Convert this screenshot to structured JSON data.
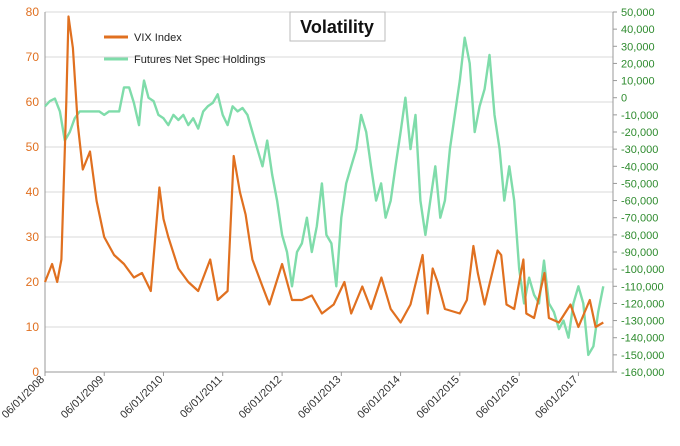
{
  "chart_data": {
    "type": "line",
    "title": "Volatility",
    "x_tick_labels": [
      "06/01/2008",
      "06/01/2009",
      "06/01/2010",
      "06/01/2011",
      "06/01/2012",
      "06/01/2013",
      "06/01/2014",
      "06/01/2015",
      "06/01/2016",
      "06/01/2017"
    ],
    "x_range": [
      "2008-06-01",
      "2017-12-31"
    ],
    "y_left": {
      "ticks": [
        0,
        10,
        20,
        30,
        40,
        50,
        60,
        70,
        80
      ],
      "range": [
        0,
        80
      ]
    },
    "y_right": {
      "ticks": [
        50000,
        40000,
        30000,
        20000,
        10000,
        0,
        -10000,
        -20000,
        -30000,
        -40000,
        -50000,
        -60000,
        -70000,
        -80000,
        -90000,
        -100000,
        -110000,
        -120000,
        -130000,
        -140000,
        -150000,
        -160000
      ],
      "tick_labels": [
        "50,000",
        "40,000",
        "30,000",
        "20,000",
        "10,000",
        "0",
        "-10,000",
        "-20,000",
        "-30,000",
        "-40,000",
        "-50,000",
        "-60,000",
        "-70,000",
        "-80,000",
        "-90,000",
        "-100,000",
        "-110,000",
        "-120,000",
        "-130,000",
        "-140,000",
        "-150,000",
        "-160,000"
      ],
      "range": [
        -160000,
        50000
      ]
    },
    "grid": true,
    "legend_position": "top-left",
    "series": [
      {
        "name": "VIX Index",
        "axis": "left",
        "color": "#e07020",
        "points": [
          [
            "2008-06-01",
            20
          ],
          [
            "2008-07-15",
            24
          ],
          [
            "2008-08-15",
            20
          ],
          [
            "2008-09-10",
            25
          ],
          [
            "2008-10-10",
            60
          ],
          [
            "2008-10-24",
            79
          ],
          [
            "2008-11-20",
            72
          ],
          [
            "2008-12-20",
            55
          ],
          [
            "2009-01-20",
            45
          ],
          [
            "2009-03-05",
            49
          ],
          [
            "2009-04-15",
            38
          ],
          [
            "2009-06-01",
            30
          ],
          [
            "2009-08-01",
            26
          ],
          [
            "2009-10-01",
            24
          ],
          [
            "2009-12-01",
            21
          ],
          [
            "2010-01-20",
            22
          ],
          [
            "2010-03-15",
            18
          ],
          [
            "2010-05-07",
            41
          ],
          [
            "2010-06-01",
            34
          ],
          [
            "2010-07-01",
            30
          ],
          [
            "2010-09-01",
            23
          ],
          [
            "2010-11-01",
            20
          ],
          [
            "2011-01-01",
            18
          ],
          [
            "2011-03-16",
            25
          ],
          [
            "2011-05-01",
            16
          ],
          [
            "2011-07-01",
            18
          ],
          [
            "2011-08-08",
            48
          ],
          [
            "2011-09-15",
            40
          ],
          [
            "2011-10-20",
            35
          ],
          [
            "2011-12-01",
            25
          ],
          [
            "2012-02-01",
            19
          ],
          [
            "2012-03-15",
            15
          ],
          [
            "2012-06-01",
            24
          ],
          [
            "2012-08-01",
            16
          ],
          [
            "2012-10-01",
            16
          ],
          [
            "2012-12-01",
            17
          ],
          [
            "2013-02-01",
            13
          ],
          [
            "2013-04-15",
            15
          ],
          [
            "2013-06-20",
            20
          ],
          [
            "2013-08-01",
            13
          ],
          [
            "2013-10-08",
            19
          ],
          [
            "2013-12-01",
            14
          ],
          [
            "2014-02-03",
            21
          ],
          [
            "2014-04-01",
            14
          ],
          [
            "2014-06-01",
            11
          ],
          [
            "2014-08-01",
            15
          ],
          [
            "2014-10-15",
            26
          ],
          [
            "2014-11-15",
            13
          ],
          [
            "2014-12-16",
            23
          ],
          [
            "2015-01-15",
            20
          ],
          [
            "2015-03-01",
            14
          ],
          [
            "2015-06-01",
            13
          ],
          [
            "2015-07-15",
            16
          ],
          [
            "2015-08-24",
            28
          ],
          [
            "2015-09-20",
            22
          ],
          [
            "2015-11-01",
            15
          ],
          [
            "2016-01-20",
            27
          ],
          [
            "2016-02-11",
            26
          ],
          [
            "2016-03-15",
            15
          ],
          [
            "2016-05-01",
            14
          ],
          [
            "2016-06-27",
            25
          ],
          [
            "2016-07-15",
            13
          ],
          [
            "2016-09-01",
            12
          ],
          [
            "2016-11-04",
            22
          ],
          [
            "2016-12-01",
            12
          ],
          [
            "2017-02-01",
            11
          ],
          [
            "2017-04-13",
            15
          ],
          [
            "2017-06-01",
            10
          ],
          [
            "2017-08-10",
            16
          ],
          [
            "2017-09-15",
            10
          ],
          [
            "2017-11-01",
            11
          ]
        ]
      },
      {
        "name": "Futures Net Spec Holdings",
        "axis": "right",
        "color": "#7fdcaa",
        "points": [
          [
            "2008-06-01",
            -5000
          ],
          [
            "2008-07-01",
            -2000
          ],
          [
            "2008-08-01",
            -500
          ],
          [
            "2008-09-01",
            -8000
          ],
          [
            "2008-10-01",
            -25000
          ],
          [
            "2008-11-01",
            -20000
          ],
          [
            "2008-12-01",
            -12000
          ],
          [
            "2009-01-01",
            -8000
          ],
          [
            "2009-02-01",
            -8000
          ],
          [
            "2009-03-01",
            -8000
          ],
          [
            "2009-04-01",
            -8000
          ],
          [
            "2009-05-01",
            -8000
          ],
          [
            "2009-06-01",
            -10000
          ],
          [
            "2009-07-01",
            -8000
          ],
          [
            "2009-08-01",
            -8000
          ],
          [
            "2009-09-01",
            -8000
          ],
          [
            "2009-10-01",
            6000
          ],
          [
            "2009-11-01",
            6000
          ],
          [
            "2009-12-01",
            -3000
          ],
          [
            "2010-01-01",
            -16000
          ],
          [
            "2010-01-15",
            -2000
          ],
          [
            "2010-02-01",
            10000
          ],
          [
            "2010-03-01",
            0
          ],
          [
            "2010-04-01",
            -2000
          ],
          [
            "2010-05-01",
            -10000
          ],
          [
            "2010-06-01",
            -12000
          ],
          [
            "2010-07-01",
            -16000
          ],
          [
            "2010-08-01",
            -10000
          ],
          [
            "2010-09-01",
            -13000
          ],
          [
            "2010-10-01",
            -10000
          ],
          [
            "2010-11-01",
            -16000
          ],
          [
            "2010-12-01",
            -12000
          ],
          [
            "2011-01-01",
            -18000
          ],
          [
            "2011-02-01",
            -8000
          ],
          [
            "2011-03-01",
            -5000
          ],
          [
            "2011-04-01",
            -3000
          ],
          [
            "2011-05-01",
            2000
          ],
          [
            "2011-06-01",
            -10000
          ],
          [
            "2011-07-01",
            -16000
          ],
          [
            "2011-08-01",
            -5000
          ],
          [
            "2011-09-01",
            -8000
          ],
          [
            "2011-10-01",
            -6000
          ],
          [
            "2011-11-01",
            -10000
          ],
          [
            "2011-12-01",
            -20000
          ],
          [
            "2012-01-01",
            -30000
          ],
          [
            "2012-02-01",
            -40000
          ],
          [
            "2012-03-01",
            -25000
          ],
          [
            "2012-04-01",
            -45000
          ],
          [
            "2012-05-01",
            -60000
          ],
          [
            "2012-06-01",
            -80000
          ],
          [
            "2012-07-01",
            -90000
          ],
          [
            "2012-08-01",
            -110000
          ],
          [
            "2012-09-01",
            -90000
          ],
          [
            "2012-10-01",
            -85000
          ],
          [
            "2012-11-01",
            -70000
          ],
          [
            "2012-12-01",
            -90000
          ],
          [
            "2013-01-01",
            -75000
          ],
          [
            "2013-02-01",
            -50000
          ],
          [
            "2013-03-01",
            -80000
          ],
          [
            "2013-04-01",
            -85000
          ],
          [
            "2013-05-01",
            -110000
          ],
          [
            "2013-06-01",
            -70000
          ],
          [
            "2013-07-01",
            -50000
          ],
          [
            "2013-08-01",
            -40000
          ],
          [
            "2013-09-01",
            -30000
          ],
          [
            "2013-10-01",
            -10000
          ],
          [
            "2013-11-01",
            -20000
          ],
          [
            "2013-12-01",
            -40000
          ],
          [
            "2014-01-01",
            -60000
          ],
          [
            "2014-02-01",
            -50000
          ],
          [
            "2014-03-01",
            -70000
          ],
          [
            "2014-04-01",
            -60000
          ],
          [
            "2014-05-01",
            -40000
          ],
          [
            "2014-06-01",
            -20000
          ],
          [
            "2014-07-01",
            0
          ],
          [
            "2014-08-01",
            -30000
          ],
          [
            "2014-09-01",
            -10000
          ],
          [
            "2014-10-01",
            -60000
          ],
          [
            "2014-11-01",
            -80000
          ],
          [
            "2014-12-01",
            -60000
          ],
          [
            "2015-01-01",
            -40000
          ],
          [
            "2015-02-01",
            -70000
          ],
          [
            "2015-03-01",
            -60000
          ],
          [
            "2015-04-01",
            -30000
          ],
          [
            "2015-05-01",
            -10000
          ],
          [
            "2015-06-01",
            10000
          ],
          [
            "2015-07-01",
            35000
          ],
          [
            "2015-08-01",
            20000
          ],
          [
            "2015-09-01",
            -20000
          ],
          [
            "2015-10-01",
            -5000
          ],
          [
            "2015-11-01",
            5000
          ],
          [
            "2015-12-01",
            25000
          ],
          [
            "2016-01-01",
            -10000
          ],
          [
            "2016-02-01",
            -30000
          ],
          [
            "2016-03-01",
            -60000
          ],
          [
            "2016-04-01",
            -40000
          ],
          [
            "2016-05-01",
            -60000
          ],
          [
            "2016-06-01",
            -100000
          ],
          [
            "2016-07-01",
            -120000
          ],
          [
            "2016-08-01",
            -105000
          ],
          [
            "2016-09-01",
            -115000
          ],
          [
            "2016-10-01",
            -120000
          ],
          [
            "2016-11-01",
            -95000
          ],
          [
            "2016-12-01",
            -120000
          ],
          [
            "2017-01-01",
            -125000
          ],
          [
            "2017-02-01",
            -135000
          ],
          [
            "2017-03-01",
            -130000
          ],
          [
            "2017-04-01",
            -140000
          ],
          [
            "2017-05-01",
            -120000
          ],
          [
            "2017-06-01",
            -110000
          ],
          [
            "2017-07-01",
            -120000
          ],
          [
            "2017-08-01",
            -150000
          ],
          [
            "2017-09-01",
            -145000
          ],
          [
            "2017-10-01",
            -125000
          ],
          [
            "2017-11-01",
            -110000
          ]
        ]
      }
    ]
  }
}
